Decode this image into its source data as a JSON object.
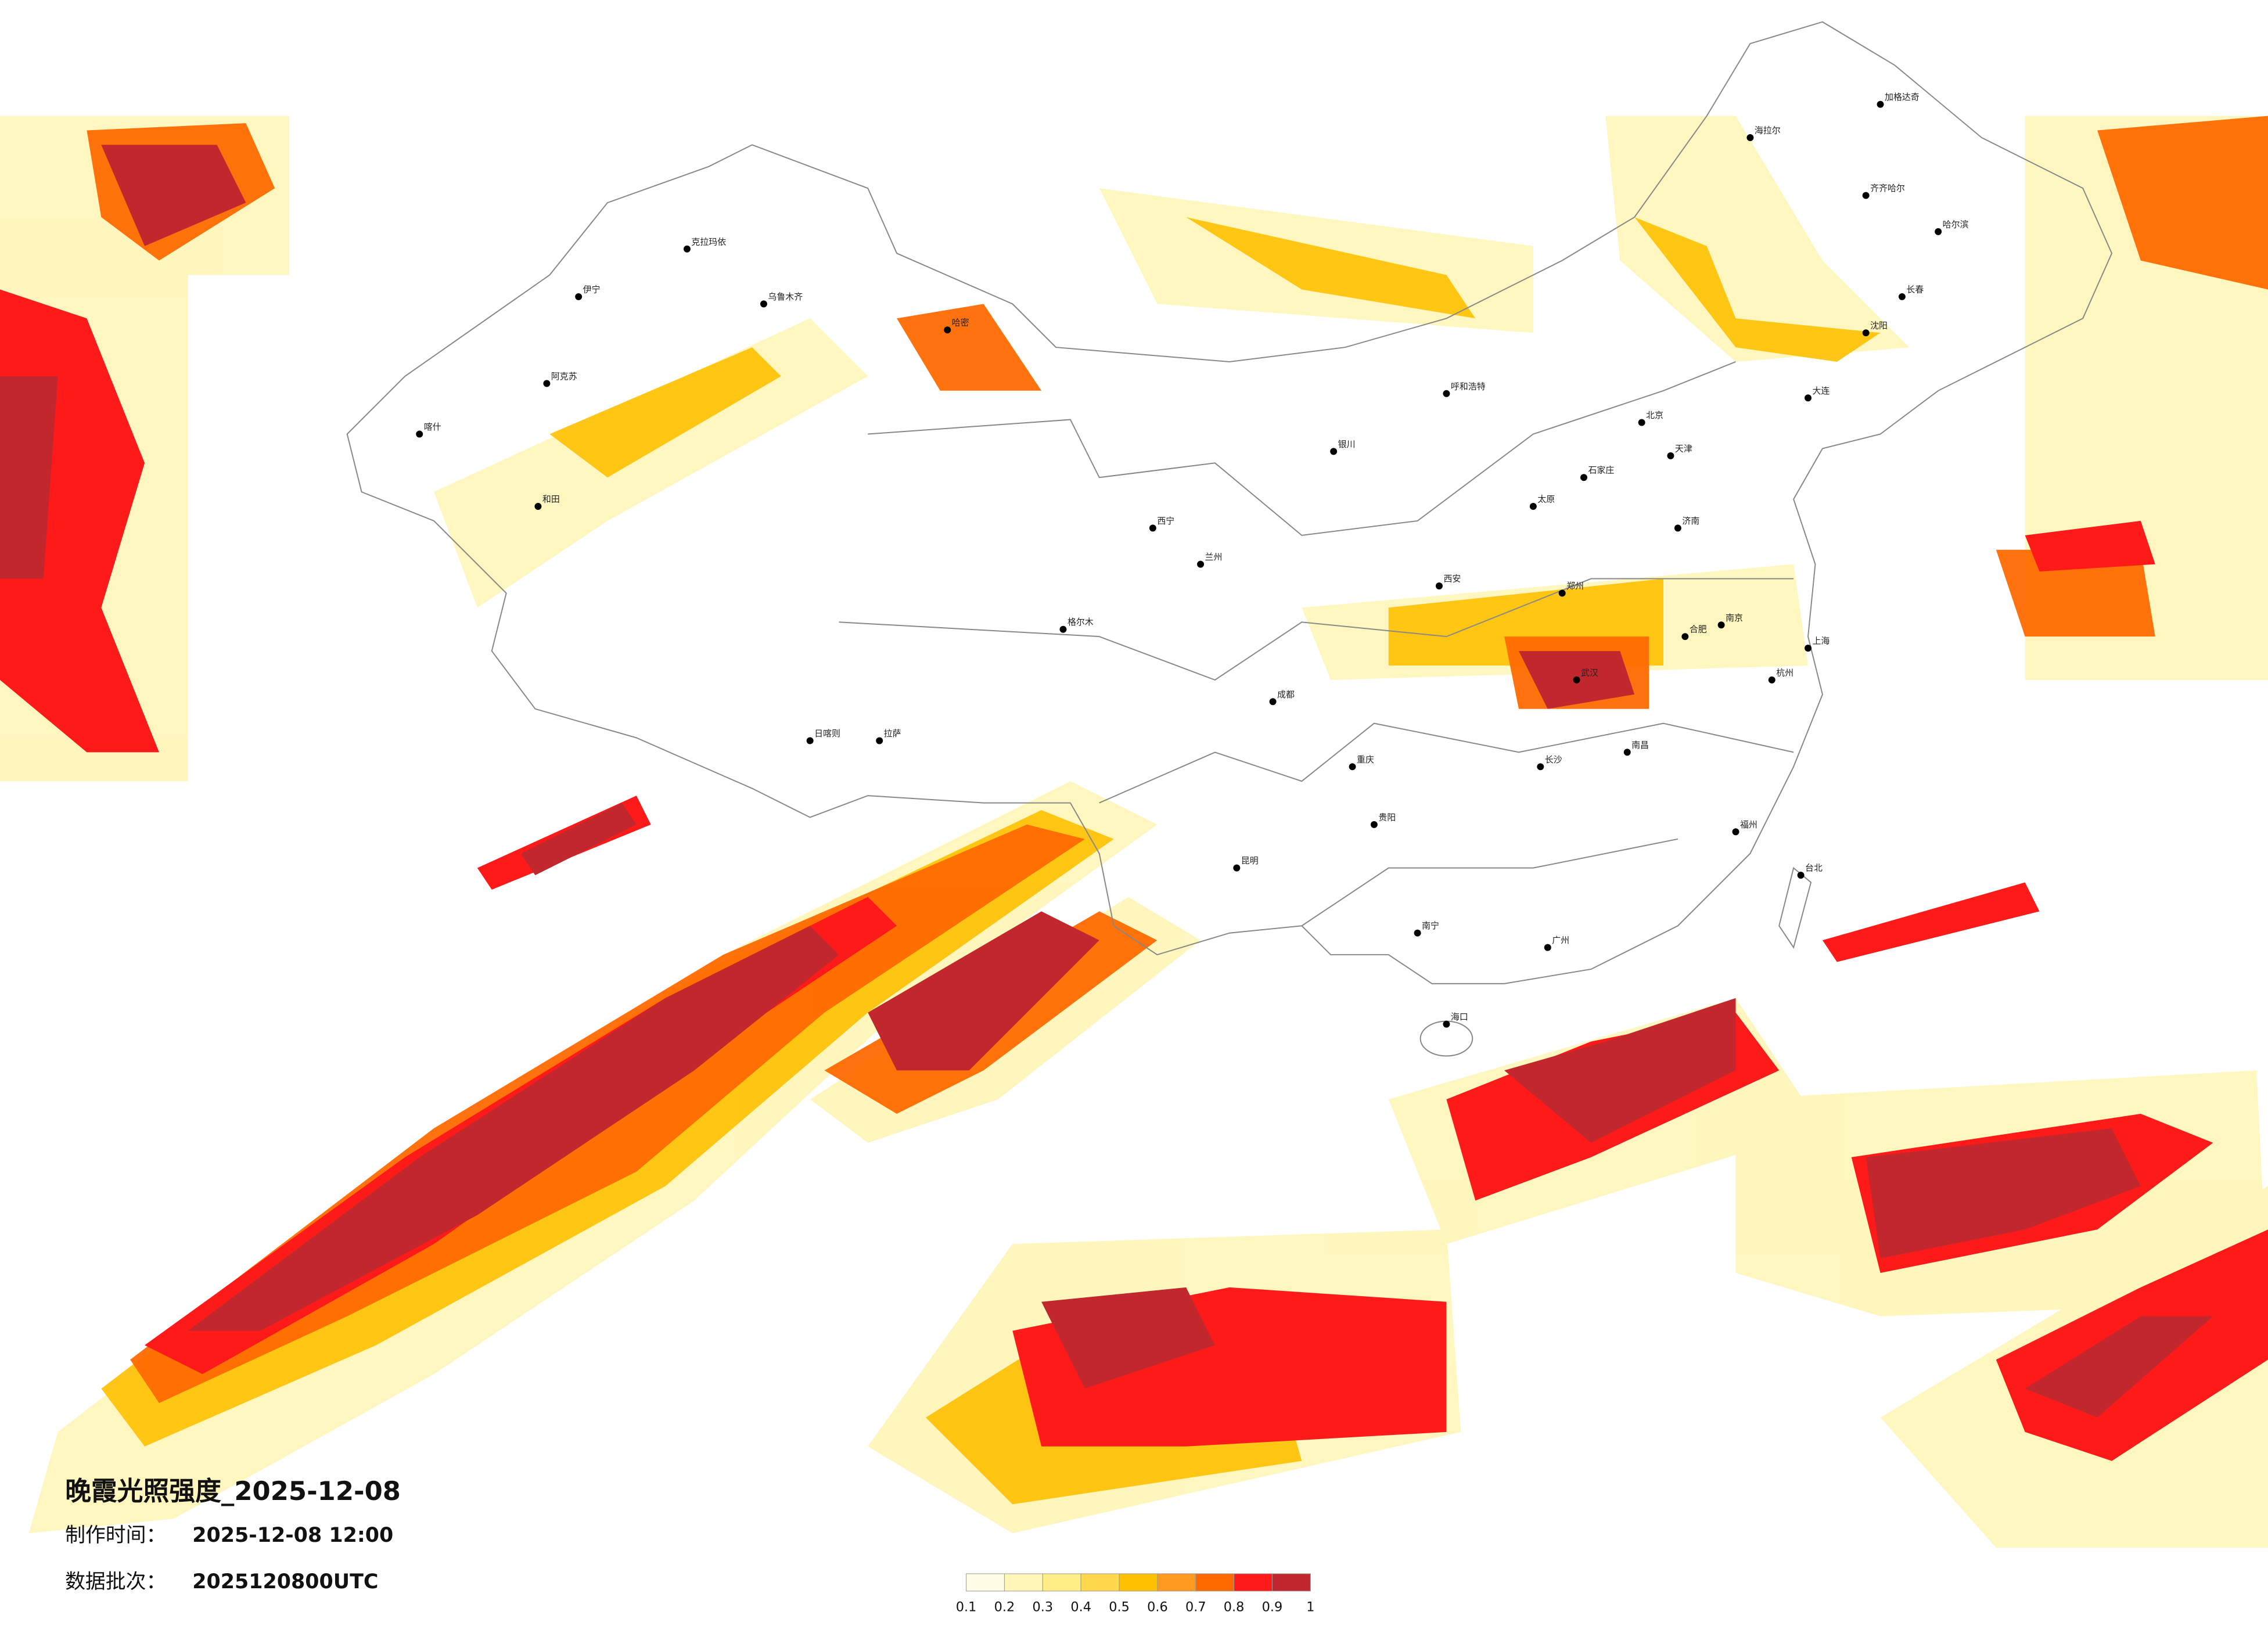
{
  "title": "晚霞光照强度_2025-12-08",
  "info": {
    "made_label": "制作时间：",
    "made_value": "2025-12-08 12:00",
    "batch_label": "数据批次：",
    "batch_value": "2025120800UTC"
  },
  "colorbar": {
    "colors": [
      "#fffce6",
      "#fff6b8",
      "#ffee85",
      "#ffd84d",
      "#ffc000",
      "#ff9a1f",
      "#ff6a00",
      "#ff1a1a",
      "#c1272d"
    ],
    "ticks": [
      0.1,
      0.2,
      0.3,
      0.4,
      0.5,
      0.6,
      0.7,
      0.8,
      0.9,
      1
    ]
  },
  "cities": [
    "克拉玛依",
    "乌鲁木齐",
    "伊宁",
    "阿克苏",
    "喀什",
    "和田",
    "哈密",
    "拉萨",
    "日喀则",
    "格尔木",
    "西宁",
    "兰州",
    "银川",
    "呼和浩特",
    "北京",
    "天津",
    "石家庄",
    "太原",
    "济南",
    "郑州",
    "西安",
    "武汉",
    "南京",
    "上海",
    "杭州",
    "合肥",
    "长沙",
    "南昌",
    "福州",
    "广州",
    "南宁",
    "海口",
    "贵阳",
    "昆明",
    "成都",
    "重庆",
    "沈阳",
    "长春",
    "哈尔滨",
    "齐齐哈尔",
    "台北",
    "大连",
    "海拉尔",
    "加格达奇"
  ]
}
